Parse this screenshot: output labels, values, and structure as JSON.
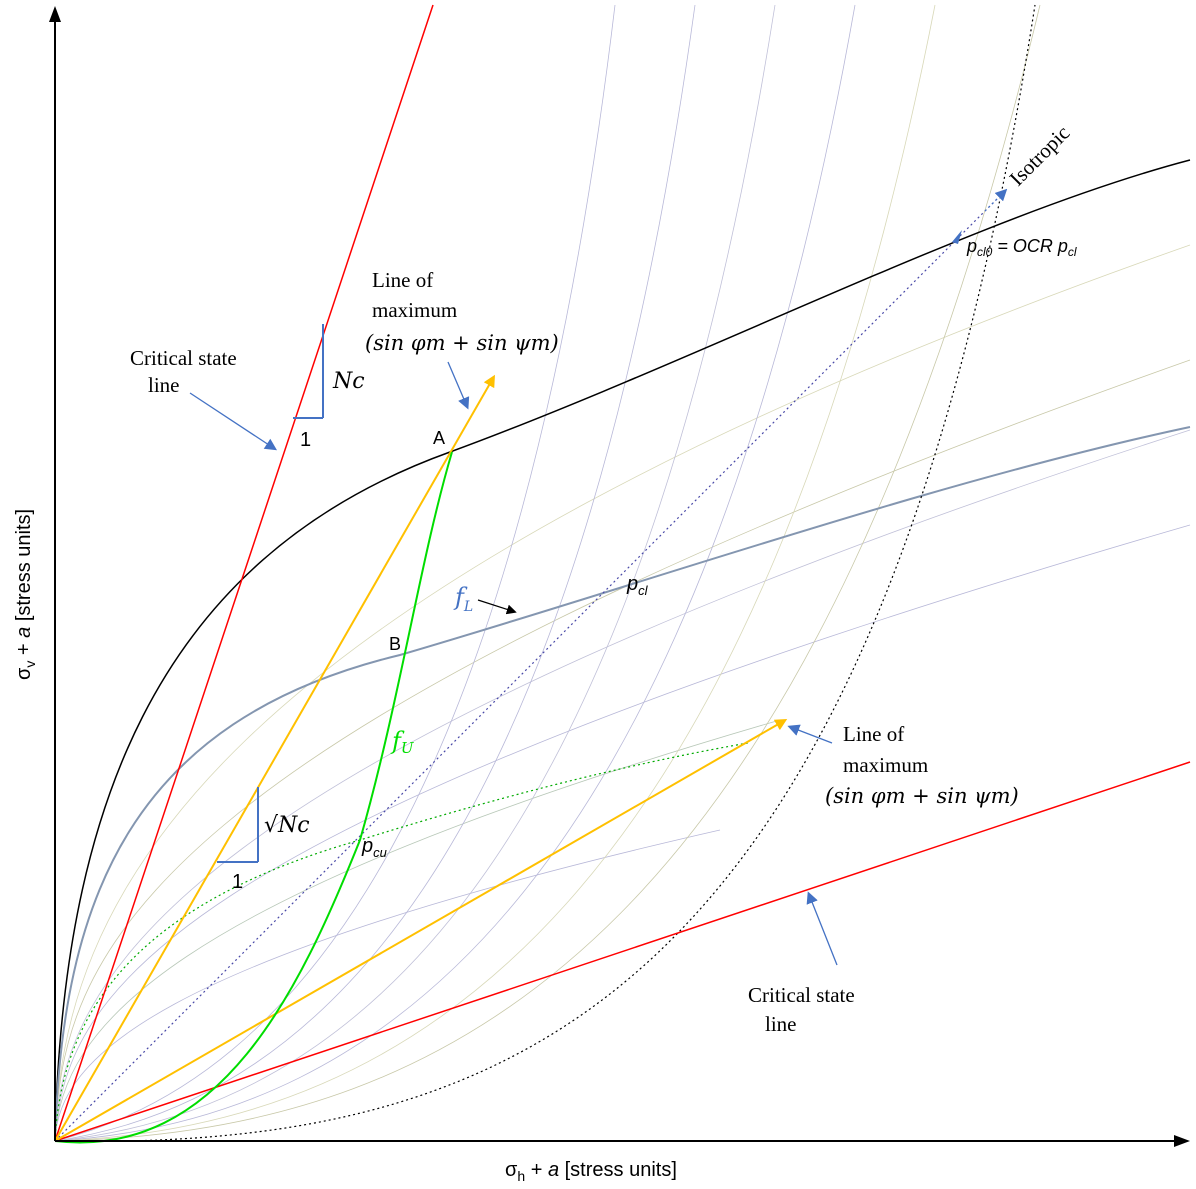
{
  "axes": {
    "x_label_sym": "σ",
    "x_label_sub": "h",
    "x_label_rest": " + ",
    "x_label_a": "a",
    "x_label_units": " [stress units]",
    "y_label_sym": "σ",
    "y_label_sub": "v",
    "y_label_rest": " + ",
    "y_label_a": "a",
    "y_label_units": " [stress units]"
  },
  "labels": {
    "csl_upper_line1": "Critical state",
    "csl_upper_line2": "line",
    "csl_lower_line1": "Critical state",
    "csl_lower_line2": "line",
    "lom_upper_line1": "Line of",
    "lom_upper_line2": "maximum",
    "lom_upper_line3": "(sin φm + sin ψm)",
    "lom_lower_line1": "Line of",
    "lom_lower_line2": "maximum",
    "lom_lower_line3": "(sin φm + sin ψm)",
    "isotropic": "Isotropic",
    "point_a": "A",
    "point_b": "B",
    "f_L_main": "f",
    "f_L_sub": "L",
    "f_U_main": "f",
    "f_U_sub": "U",
    "p_cl_main": "p",
    "p_cl_sub": "cl",
    "p_cu_main": "p",
    "p_cu_sub": "cu",
    "p_cl0_main": "p",
    "p_cl0_sub": "cl0",
    "p_cl0_eq": " = OCR ",
    "p_cl0_p": "p",
    "p_cl0_p_sub": "cl",
    "slope_upper_rise": "Nc",
    "slope_upper_run": "1",
    "slope_lower_rise": "√Nc",
    "slope_lower_run": "1"
  },
  "colors": {
    "csl": "#ff0000",
    "lom": "#ffc000",
    "f_U": "#00dd00",
    "f_L": "#8496b0",
    "outer_yield": "#000000",
    "annotation_arrow": "#4472c4",
    "isotropic_line": "#4a4aa8",
    "p_cu_curve": "#00aa00"
  }
}
